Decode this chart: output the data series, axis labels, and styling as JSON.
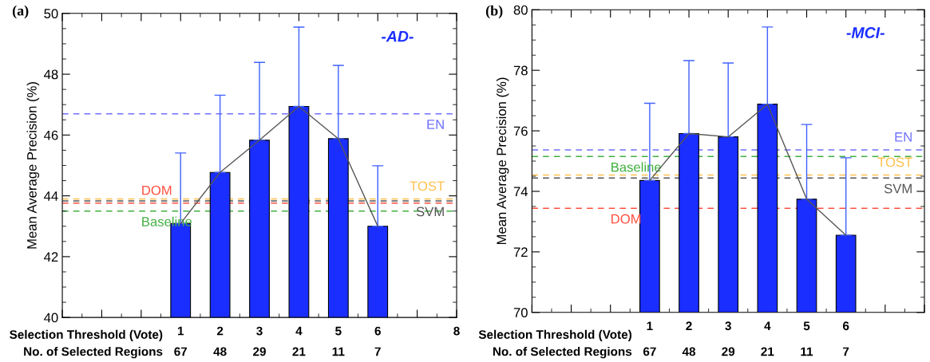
{
  "chart_data": [
    {
      "type": "bar",
      "title": "-AD-",
      "ylabel": "Mean Average Precision (%)",
      "x": [
        1,
        2,
        3,
        4,
        5,
        6
      ],
      "series": [
        {
          "color": "#1a2eff",
          "values": [
            43.09,
            44.77,
            45.83,
            46.94,
            45.88,
            43.0
          ],
          "errors": [
            [
              43.09,
              45.41
            ],
            [
              44.77,
              47.31
            ],
            [
              45.83,
              48.39
            ],
            [
              46.94,
              49.55
            ],
            [
              45.88,
              48.29
            ],
            [
              43.0,
              44.99
            ]
          ]
        },
        {
          "type": "line",
          "color": "#555555",
          "values": [
            43.09,
            44.77,
            45.83,
            46.94,
            45.88,
            43.0
          ]
        }
      ],
      "xlim": [
        -2,
        8
      ],
      "xticks": [
        {
          "value": -2,
          "label": null
        },
        {
          "value": -1,
          "label": null
        },
        {
          "value": 0,
          "label": null
        },
        1,
        2,
        3,
        4,
        5,
        6,
        {
          "value": 7,
          "label": null
        },
        8
      ],
      "ylim": [
        40,
        50
      ],
      "yticks": [
        40,
        42,
        44,
        46,
        48,
        50
      ],
      "ref_lines": [
        {
          "axis": "y",
          "value": 46.7,
          "label": "EN",
          "color": "#7070ff",
          "line_style": "dashed"
        },
        {
          "axis": "y",
          "value": 43.9,
          "label": "TOST",
          "color": "#ffc04d",
          "line_style": "dashed"
        },
        {
          "axis": "y",
          "value": 43.83,
          "label": "SVM",
          "color": "#555555",
          "line_style": "dashed"
        },
        {
          "axis": "y",
          "value": 43.76,
          "label": "DOM",
          "color": "#ff5040",
          "line_style": "dashed"
        },
        {
          "axis": "y",
          "value": 43.5,
          "label": "Baseline",
          "color": "#40b040",
          "line_style": "dashed"
        }
      ],
      "annotations": [
        "(a)",
        "Selection Threshold (Vote)",
        "No. of Selected Regions",
        "67",
        "48",
        "29",
        "21",
        "11",
        "7"
      ],
      "grid": false,
      "legend": false
    },
    {
      "type": "bar",
      "title": "-MCI-",
      "ylabel": "Mean Average Precision (%)",
      "x": [
        1,
        2,
        3,
        4,
        5,
        6
      ],
      "series": [
        {
          "color": "#1a2eff",
          "values": [
            74.36,
            75.91,
            75.8,
            76.88,
            73.74,
            72.55
          ],
          "errors": [
            [
              74.36,
              76.91
            ],
            [
              75.91,
              78.32
            ],
            [
              75.8,
              78.24
            ],
            [
              76.88,
              79.43
            ],
            [
              73.74,
              76.21
            ],
            [
              72.55,
              75.11
            ]
          ]
        },
        {
          "type": "line",
          "color": "#555555",
          "values": [
            74.36,
            75.91,
            75.8,
            76.88,
            73.74,
            72.55
          ]
        }
      ],
      "xlim": [
        -2,
        8
      ],
      "xticks": [
        {
          "value": -2,
          "label": null
        },
        {
          "value": -1,
          "label": null
        },
        {
          "value": 0,
          "label": null
        },
        1,
        2,
        3,
        4,
        5,
        6,
        {
          "value": 7,
          "label": null
        },
        {
          "value": 8,
          "label": null
        }
      ],
      "ylim": [
        70,
        80
      ],
      "yticks": [
        70,
        72,
        74,
        76,
        78,
        80
      ],
      "ref_lines": [
        {
          "axis": "y",
          "value": 75.37,
          "label": "EN",
          "color": "#7070ff",
          "line_style": "dashed"
        },
        {
          "axis": "y",
          "value": 75.15,
          "label": "Baseline",
          "color": "#40b040",
          "line_style": "dashed"
        },
        {
          "axis": "y",
          "value": 74.54,
          "label": "TOST",
          "color": "#ffc04d",
          "line_style": "dashed"
        },
        {
          "axis": "y",
          "value": 74.44,
          "label": "SVM",
          "color": "#555555",
          "line_style": "dashed"
        },
        {
          "axis": "y",
          "value": 73.44,
          "label": "DOM",
          "color": "#ff5040",
          "line_style": "dashed"
        }
      ],
      "annotations": [
        "(b)",
        "Selection Threshold (Vote)",
        "No. of Selected Regions",
        "67",
        "48",
        "29",
        "21",
        "11",
        "7"
      ],
      "grid": false,
      "legend": false
    }
  ]
}
